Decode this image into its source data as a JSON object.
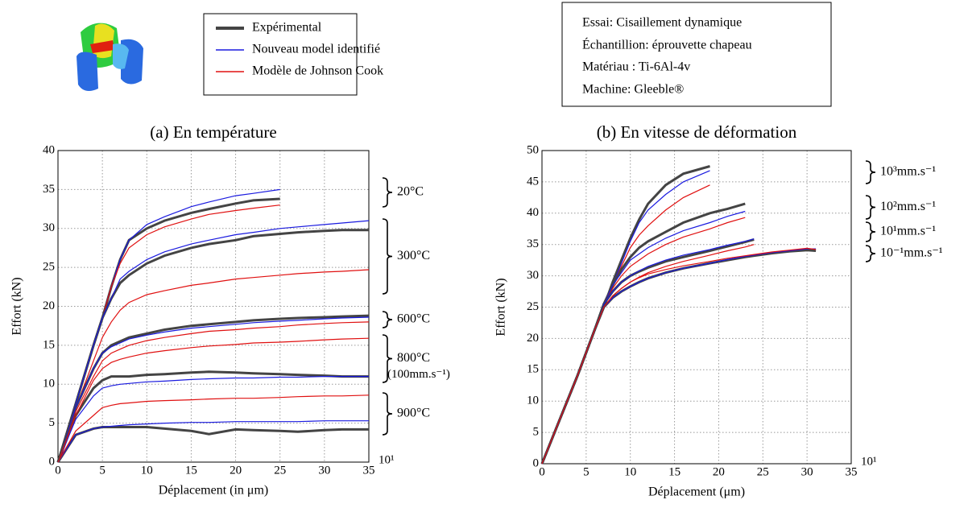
{
  "legend": [
    {
      "name": "Expérimental",
      "color": "#444444"
    },
    {
      "name": "Nouveau model identifié",
      "color": "#1a1adf"
    },
    {
      "name": "Modèle de Johnson Cook",
      "color": "#e01010"
    }
  ],
  "info": [
    "Essai: Cisaillement dynamique",
    "Échantillion: éprouvette chapeau",
    "Matériau : Ti-6Al-4v",
    "Machine: Gleeble®"
  ],
  "chart_data": [
    {
      "type": "line",
      "title": "(a) En température",
      "x_label": "Déplacement (in μm)",
      "y_label": "Effort  (kN)",
      "annotation": "10¹",
      "xlim": [
        0,
        35
      ],
      "ylim": [
        0,
        40
      ],
      "xticks": [
        0,
        5,
        10,
        15,
        20,
        25,
        30,
        35
      ],
      "yticks": [
        0,
        5,
        10,
        15,
        20,
        25,
        30,
        35,
        40
      ],
      "grid": true,
      "x": [
        0,
        2,
        4,
        5,
        6,
        7,
        8,
        10,
        12,
        15,
        17,
        20,
        22,
        25,
        27,
        30,
        32,
        35
      ],
      "groups": [
        {
          "label": "20°C",
          "series": [
            {
              "color": "#444444",
              "values": [
                0,
                7.5,
                15,
                18.5,
                22.5,
                26,
                28.5,
                30,
                31,
                32,
                32.5,
                33.2,
                33.6,
                33.8,
                null,
                null,
                null,
                null
              ]
            },
            {
              "color": "#1a1adf",
              "values": [
                0,
                7.5,
                15,
                18.5,
                22.5,
                26,
                28.5,
                30.5,
                31.5,
                32.8,
                33.4,
                34.2,
                34.5,
                35,
                null,
                null,
                null,
                null
              ]
            },
            {
              "color": "#e01010",
              "values": [
                0,
                7.5,
                15,
                18.5,
                22.5,
                25.5,
                27.5,
                29.2,
                30.2,
                31.2,
                31.8,
                32.3,
                32.6,
                33,
                null,
                null,
                null,
                null
              ]
            }
          ]
        },
        {
          "label": "300°C",
          "series": [
            {
              "color": "#444444",
              "values": [
                0,
                7.5,
                15,
                18.5,
                21,
                23,
                24,
                25.5,
                26.5,
                27.5,
                28,
                28.5,
                29,
                29.3,
                29.5,
                29.7,
                29.8,
                29.8
              ]
            },
            {
              "color": "#1a1adf",
              "values": [
                0,
                7.5,
                15,
                18.5,
                21,
                23.5,
                24.5,
                26,
                27,
                28,
                28.5,
                29.2,
                29.5,
                30,
                30.2,
                30.5,
                30.7,
                31
              ]
            },
            {
              "color": "#e01010",
              "values": [
                0,
                7,
                13,
                16,
                18,
                19.5,
                20.5,
                21.5,
                22,
                22.7,
                23,
                23.5,
                23.7,
                24,
                24.2,
                24.4,
                24.5,
                24.7
              ]
            }
          ]
        },
        {
          "label": "600°C",
          "series": [
            {
              "color": "#444444",
              "values": [
                0,
                7,
                12,
                14,
                15,
                15.5,
                16,
                16.5,
                17,
                17.5,
                17.7,
                18,
                18.2,
                18.4,
                18.5,
                18.6,
                18.7,
                18.8
              ]
            },
            {
              "color": "#1a1adf",
              "values": [
                0,
                7,
                12,
                14,
                14.8,
                15.3,
                15.8,
                16.3,
                16.7,
                17.2,
                17.4,
                17.7,
                17.9,
                18.1,
                18.2,
                18.4,
                18.5,
                18.6
              ]
            },
            {
              "color": "#e01010",
              "values": [
                0,
                6.5,
                11,
                13,
                14,
                14.5,
                15,
                15.6,
                16,
                16.5,
                16.8,
                17,
                17.2,
                17.4,
                17.6,
                17.8,
                17.9,
                18
              ]
            }
          ]
        },
        {
          "label": "800°C",
          "note": "(100mm.s⁻¹)",
          "series": [
            {
              "color": "#444444",
              "values": [
                0,
                6,
                9.5,
                10.5,
                11,
                11,
                11,
                11.2,
                11.3,
                11.5,
                11.6,
                11.5,
                11.4,
                11.3,
                11.2,
                11.1,
                11,
                11
              ]
            },
            {
              "color": "#1a1adf",
              "values": [
                0,
                5.5,
                8.5,
                9.5,
                9.8,
                10,
                10.1,
                10.3,
                10.4,
                10.6,
                10.7,
                10.8,
                10.8,
                10.9,
                10.9,
                11,
                11,
                11
              ]
            },
            {
              "color": "#e01010",
              "values": [
                0,
                6,
                10.5,
                12,
                12.8,
                13.2,
                13.5,
                14,
                14.3,
                14.7,
                14.9,
                15.1,
                15.3,
                15.4,
                15.5,
                15.7,
                15.8,
                15.9
              ]
            }
          ]
        },
        {
          "label": "900°C",
          "series": [
            {
              "color": "#444444",
              "values": [
                0,
                3.5,
                4.3,
                4.5,
                4.5,
                4.5,
                4.5,
                4.5,
                4.3,
                4,
                3.6,
                4.2,
                4.1,
                4,
                3.9,
                4.1,
                4.2,
                4.2
              ]
            },
            {
              "color": "#1a1adf",
              "values": [
                0,
                3.5,
                4.3,
                4.5,
                4.6,
                4.7,
                4.8,
                4.9,
                5,
                5.1,
                5.1,
                5.2,
                5.2,
                5.2,
                5.2,
                5.3,
                5.3,
                5.3
              ]
            },
            {
              "color": "#e01010",
              "values": [
                0,
                4,
                6,
                7,
                7.3,
                7.5,
                7.6,
                7.8,
                7.9,
                8,
                8.1,
                8.2,
                8.2,
                8.3,
                8.4,
                8.5,
                8.5,
                8.6
              ]
            }
          ]
        }
      ]
    },
    {
      "type": "line",
      "title": "(b) En vitesse de déformation",
      "x_label": "Déplacement (μm)",
      "y_label": "Effort  (kN)",
      "annotation": "10¹",
      "xlim": [
        0,
        35
      ],
      "ylim": [
        0,
        50
      ],
      "xticks": [
        0,
        5,
        10,
        15,
        20,
        25,
        30,
        35
      ],
      "yticks": [
        0,
        5,
        10,
        15,
        20,
        25,
        30,
        35,
        40,
        45,
        50
      ],
      "grid": true,
      "x": [
        0,
        2,
        4,
        6,
        7,
        8,
        9,
        10,
        11,
        12,
        14,
        16,
        19,
        21,
        23,
        24,
        26,
        28,
        30,
        31
      ],
      "groups": [
        {
          "label": "10³mm.s⁻¹",
          "series": [
            {
              "color": "#444444",
              "values": [
                0,
                7,
                14,
                21.5,
                25,
                29,
                32.5,
                36,
                39,
                41.5,
                44.5,
                46.3,
                47.5,
                null,
                null,
                null,
                null,
                null,
                null,
                null
              ]
            },
            {
              "color": "#1a1adf",
              "values": [
                0,
                7,
                14,
                21.5,
                25,
                28.5,
                32,
                35.5,
                38.5,
                40.5,
                43,
                45,
                46.8,
                null,
                null,
                null,
                null,
                null,
                null,
                null
              ]
            },
            {
              "color": "#e01010",
              "values": [
                0,
                7,
                14,
                21.5,
                25,
                28.5,
                31.5,
                34.5,
                36.5,
                38,
                40.5,
                42.5,
                44.5,
                null,
                null,
                null,
                null,
                null,
                null,
                null
              ]
            }
          ]
        },
        {
          "label": "10²mm.s⁻¹",
          "series": [
            {
              "color": "#444444",
              "values": [
                0,
                7,
                14,
                21.5,
                25.5,
                28.5,
                31,
                33,
                34.5,
                35.5,
                37,
                38.5,
                40,
                40.7,
                41.5,
                null,
                null,
                null,
                null,
                null
              ]
            },
            {
              "color": "#1a1adf",
              "values": [
                0,
                7,
                14,
                21.5,
                25.5,
                28.5,
                30.5,
                32.5,
                33.5,
                34.5,
                36,
                37.2,
                38.5,
                39.5,
                40.3,
                null,
                null,
                null,
                null,
                null
              ]
            },
            {
              "color": "#e01010",
              "values": [
                0,
                7,
                14,
                21.5,
                25.5,
                28,
                30,
                31.5,
                32.5,
                33.5,
                35,
                36.2,
                37.5,
                38.5,
                39.3,
                null,
                null,
                null,
                null,
                null
              ]
            }
          ]
        },
        {
          "label": "10¹mm.s⁻¹",
          "series": [
            {
              "color": "#444444",
              "values": [
                0,
                7,
                14,
                21.5,
                25.5,
                27.5,
                29,
                30,
                30.7,
                31.3,
                32.3,
                33,
                34,
                34.7,
                35.4,
                35.8,
                null,
                null,
                null,
                null
              ]
            },
            {
              "color": "#1a1adf",
              "values": [
                0,
                7,
                14,
                21.5,
                25.5,
                27.5,
                29,
                30,
                30.8,
                31.5,
                32.5,
                33.3,
                34.2,
                34.9,
                35.5,
                35.9,
                null,
                null,
                null,
                null
              ]
            },
            {
              "color": "#e01010",
              "values": [
                0,
                7,
                14,
                21.5,
                25,
                26.8,
                28,
                29,
                29.8,
                30.5,
                31.5,
                32.3,
                33.3,
                34,
                34.6,
                35,
                null,
                null,
                null,
                null
              ]
            }
          ]
        },
        {
          "label": "10⁻¹mm.s⁻¹",
          "series": [
            {
              "color": "#444444",
              "values": [
                0,
                7,
                14,
                21.5,
                25,
                26.5,
                27.5,
                28.3,
                29,
                29.6,
                30.5,
                31.2,
                32,
                32.5,
                33,
                33.2,
                33.6,
                33.9,
                34.1,
                34
              ]
            },
            {
              "color": "#1a1adf",
              "values": [
                0,
                7,
                14,
                21.5,
                25,
                26.5,
                27.5,
                28.3,
                29,
                29.6,
                30.5,
                31.2,
                32,
                32.6,
                33.1,
                33.3,
                33.7,
                34,
                34.3,
                34.3
              ]
            },
            {
              "color": "#e01010",
              "values": [
                0,
                7,
                14,
                21.5,
                25,
                26.8,
                28,
                29,
                29.7,
                30.3,
                31,
                31.6,
                32.3,
                32.8,
                33.2,
                33.4,
                33.8,
                34.1,
                34.4,
                34.2
              ]
            }
          ]
        }
      ]
    }
  ]
}
